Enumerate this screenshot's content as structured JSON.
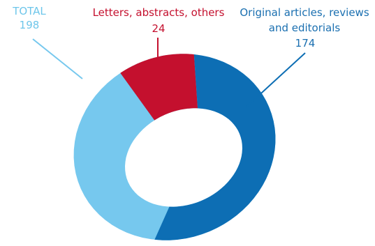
{
  "chart_data": {
    "type": "pie",
    "variant": "donut",
    "total": {
      "label": "TOTAL",
      "value": 198
    },
    "slices": [
      {
        "label": "Original articles, reviews and editorials",
        "label_lines": [
          "Original articles, reviews",
          "and editorials"
        ],
        "value": 174,
        "color": "#0d6eb4"
      },
      {
        "label": "Letters, abstracts, others",
        "label_lines": [
          "Letters, abstracts, others"
        ],
        "value": 24,
        "color": "#c4102e"
      }
    ],
    "total_ring_color": "#76c8ee",
    "legend": "none"
  },
  "text": {
    "total_label": "TOTAL",
    "total_value": "198",
    "letters_label": "Letters, abstracts, others",
    "letters_value": "24",
    "orig_label_1": "Original articles, reviews",
    "orig_label_2": "and editorials",
    "orig_value": "174"
  }
}
